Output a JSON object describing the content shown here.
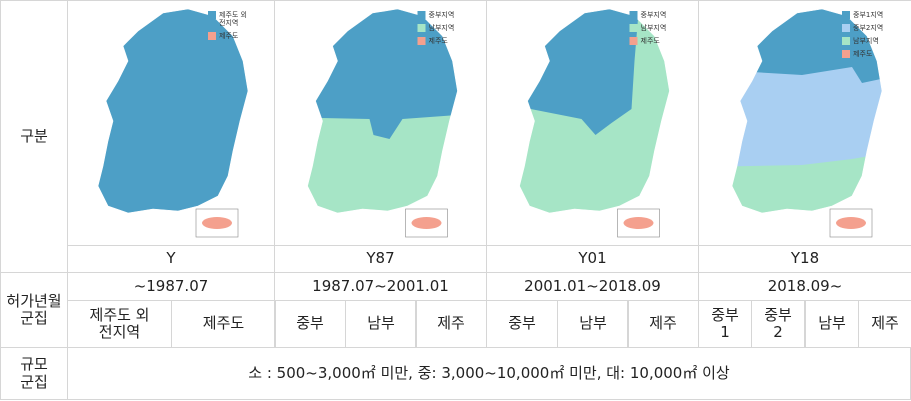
{
  "row_headers": {
    "division": [
      "구분"
    ],
    "permit": [
      "허가년월",
      "군집"
    ],
    "scale": [
      "규모",
      "군집"
    ]
  },
  "columns": [
    {
      "legend": [
        [
          "제주도 외",
          "전지역"
        ],
        [
          "제주도"
        ]
      ],
      "code": "Y",
      "period": "~1987.07",
      "clusters": [
        [
          "제주도 외",
          "전지역"
        ],
        [
          "제주도"
        ]
      ]
    },
    {
      "legend": [
        [
          "중부지역"
        ],
        [
          "남부지역"
        ],
        [
          "제주도"
        ]
      ],
      "code": "Y87",
      "period": "1987.07~2001.01",
      "clusters": [
        [
          "중부"
        ],
        [
          "남부"
        ],
        [
          "제주"
        ]
      ]
    },
    {
      "legend": [
        [
          "중부지역"
        ],
        [
          "남부지역"
        ],
        [
          "제주도"
        ]
      ],
      "code": "Y01",
      "period": "2001.01~2018.09",
      "clusters": [
        [
          "중부"
        ],
        [
          "남부"
        ],
        [
          "제주"
        ]
      ]
    },
    {
      "legend": [
        [
          "중부1지역"
        ],
        [
          "중부2지역"
        ],
        [
          "남부지역"
        ],
        [
          "제주도"
        ]
      ],
      "code": "Y18",
      "period": "2018.09~",
      "clusters": [
        [
          "중부",
          "1"
        ],
        [
          "중부",
          "2"
        ],
        [
          "남부"
        ],
        [
          "제주"
        ]
      ]
    }
  ],
  "scale_text": "소 : 500~3,000㎡ 미만, 중: 3,000~10,000㎡ 미만, 대: 10,000㎡ 이상"
}
